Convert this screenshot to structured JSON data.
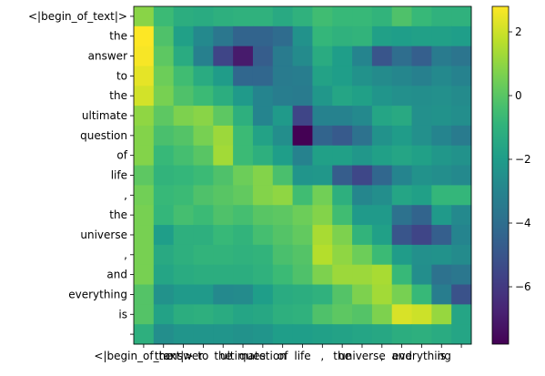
{
  "chart_data": {
    "type": "heatmap",
    "tokens": [
      "<|begin_of_text|>",
      "the",
      " answer",
      " to",
      " the",
      " ultimate",
      " question",
      " of",
      " life",
      ",",
      " the",
      " universe",
      ",",
      " and",
      " everything",
      " is",
      " "
    ],
    "x_tick_labels": [
      "<|begin_of_text|>",
      "the",
      " answer",
      " to",
      " the",
      " ultimate",
      " question",
      " of",
      " life",
      ",",
      " the",
      " universe",
      ",",
      " and",
      " everything",
      " is",
      " "
    ],
    "y_tick_labels": [
      "<|begin_of_text|>",
      "the",
      " answer",
      " to",
      " the",
      " ultimate",
      " question",
      " of",
      " life",
      ",",
      " the",
      " universe",
      ",",
      " and",
      " everything",
      " is",
      " "
    ],
    "colormap": "viridis",
    "vmin": -7.8,
    "vmax": 2.8,
    "colorbar_ticks": [
      2,
      0,
      -2,
      -4,
      -6
    ],
    "colorbar_tick_labels": [
      "2",
      "0",
      "−2",
      "−4",
      "−6"
    ],
    "values": [
      [
        0.9,
        -0.6,
        -1.2,
        -1.3,
        -1.1,
        -1.0,
        -1.0,
        -1.4,
        -1.0,
        -0.5,
        -0.7,
        -0.7,
        -0.9,
        -0.2,
        -0.7,
        -1.0,
        -1.0
      ],
      [
        2.8,
        -0.2,
        -1.8,
        -2.8,
        -3.6,
        -4.4,
        -4.4,
        -4.1,
        -2.4,
        -0.8,
        -1.0,
        -0.9,
        -1.8,
        -1.9,
        -1.8,
        -1.8,
        -1.9
      ],
      [
        2.7,
        0.1,
        -1.3,
        -3.2,
        -5.6,
        -7.0,
        -4.7,
        -3.4,
        -2.7,
        -1.3,
        -1.9,
        -3.0,
        -5.0,
        -4.0,
        -4.6,
        -3.4,
        -3.7
      ],
      [
        2.4,
        0.4,
        -0.5,
        -1.3,
        -2.0,
        -4.3,
        -4.3,
        -3.4,
        -3.3,
        -1.7,
        -1.9,
        -2.4,
        -2.7,
        -2.9,
        -3.2,
        -2.8,
        -3.1
      ],
      [
        2.1,
        0.6,
        -0.2,
        -0.6,
        -1.2,
        -2.1,
        -3.0,
        -3.3,
        -3.4,
        -2.2,
        -1.6,
        -1.8,
        -2.3,
        -2.5,
        -2.6,
        -2.5,
        -2.7
      ],
      [
        1.0,
        0.1,
        0.7,
        0.9,
        0.1,
        -1.1,
        -3.0,
        -2.1,
        -5.6,
        -3.1,
        -3.1,
        -2.8,
        -1.6,
        -1.4,
        -2.5,
        -2.4,
        -2.6
      ],
      [
        0.8,
        -0.3,
        -0.1,
        0.6,
        1.2,
        -0.6,
        -1.7,
        -2.6,
        -7.8,
        -4.4,
        -4.8,
        -3.8,
        -2.4,
        -2.0,
        -2.5,
        -3.0,
        -3.4
      ],
      [
        0.8,
        -0.7,
        -0.4,
        0.0,
        1.3,
        -0.6,
        -1.1,
        -1.9,
        -3.1,
        -1.8,
        -1.8,
        -2.2,
        -1.8,
        -1.6,
        -1.8,
        -2.2,
        -2.4
      ],
      [
        0.1,
        -0.9,
        -0.8,
        -0.6,
        -0.2,
        0.4,
        0.8,
        -0.3,
        -2.3,
        -2.2,
        -4.7,
        -5.5,
        -4.3,
        -3.0,
        -2.4,
        -2.6,
        -2.8
      ],
      [
        0.5,
        -0.7,
        -0.6,
        -0.2,
        0.0,
        0.2,
        0.8,
        1.0,
        -0.5,
        0.5,
        -1.1,
        -2.9,
        -2.6,
        -1.6,
        -1.8,
        -0.8,
        -0.8
      ],
      [
        0.6,
        -0.8,
        -0.4,
        -0.6,
        -0.2,
        -0.4,
        0.0,
        0.1,
        0.4,
        0.8,
        -0.5,
        -2.1,
        -2.1,
        -3.8,
        -4.4,
        -2.1,
        -2.8
      ],
      [
        0.6,
        -1.9,
        -1.1,
        -1.1,
        -0.7,
        -0.9,
        -0.4,
        -0.1,
        0.2,
        1.4,
        0.7,
        -0.9,
        -1.8,
        -5.0,
        -5.6,
        -4.6,
        -3.0
      ],
      [
        0.6,
        -1.4,
        -1.1,
        -0.9,
        -0.9,
        -1.0,
        -0.9,
        -0.3,
        -0.1,
        1.6,
        1.0,
        0.4,
        -0.6,
        -2.0,
        -2.5,
        -2.4,
        -2.7
      ],
      [
        0.6,
        -1.6,
        -1.3,
        -1.2,
        -1.2,
        -1.2,
        -1.0,
        -0.6,
        -0.2,
        0.7,
        1.2,
        1.2,
        1.4,
        -0.7,
        -2.6,
        -3.8,
        -3.6
      ],
      [
        -0.1,
        -2.4,
        -2.1,
        -2.1,
        -2.8,
        -2.7,
        -1.9,
        -1.3,
        -1.2,
        -1.0,
        -0.1,
        0.7,
        1.3,
        0.6,
        -0.7,
        -3.3,
        -5.1
      ],
      [
        -0.1,
        -1.7,
        -1.2,
        -1.1,
        -1.3,
        -1.6,
        -1.5,
        -1.1,
        -1.0,
        -0.2,
        0.1,
        -0.1,
        0.7,
        2.2,
        2.0,
        1.1,
        -1.6
      ],
      [
        -1.1,
        -2.6,
        -2.3,
        -2.3,
        -2.3,
        -2.4,
        -2.3,
        -1.9,
        -1.9,
        -1.8,
        -1.7,
        -1.6,
        -1.5,
        -1.2,
        -1.1,
        -1.3,
        -1.6
      ]
    ]
  }
}
